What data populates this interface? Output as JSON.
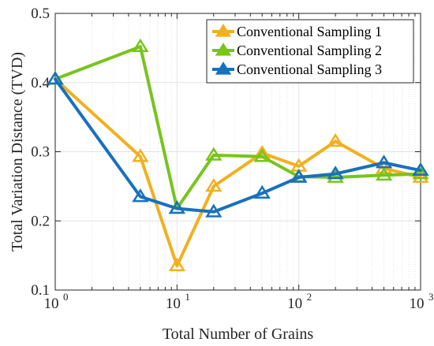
{
  "chart_data": {
    "type": "line",
    "xscale": "log",
    "xlabel": "Total Number of Grains",
    "ylabel": "Total Variation Distance (TVD)",
    "xlim": [
      1,
      1000
    ],
    "ylim": [
      0.1,
      0.5
    ],
    "grid": "minor-x-major-y",
    "legend_position": "top-right",
    "x": [
      1,
      5,
      10,
      20,
      50,
      100,
      200,
      500,
      1000
    ],
    "x_tick_labels": [
      {
        "base": "10",
        "exp": "0",
        "value": 1
      },
      {
        "base": "10",
        "exp": "1",
        "value": 10
      },
      {
        "base": "10",
        "exp": "2",
        "value": 100
      },
      {
        "base": "10",
        "exp": "3",
        "value": 1000
      }
    ],
    "y_tick_labels": [
      {
        "text": "0.1",
        "value": 0.1
      },
      {
        "text": "0.2",
        "value": 0.2
      },
      {
        "text": "0.3",
        "value": 0.3
      },
      {
        "text": "0.4",
        "value": 0.4
      },
      {
        "text": "0.5",
        "value": 0.5
      }
    ],
    "series": [
      {
        "name": "Conventional Sampling 1",
        "color": "#F2B01E",
        "values": [
          0.405,
          0.293,
          0.135,
          0.25,
          0.298,
          0.279,
          0.315,
          0.276,
          0.263
        ]
      },
      {
        "name": "Conventional Sampling 2",
        "color": "#77C41E",
        "values": [
          0.405,
          0.452,
          0.218,
          0.295,
          0.293,
          0.264,
          0.263,
          0.266,
          0.268
        ]
      },
      {
        "name": "Conventional Sampling 3",
        "color": "#1771BD",
        "values": [
          0.405,
          0.235,
          0.218,
          0.213,
          0.24,
          0.263,
          0.268,
          0.284,
          0.273
        ]
      }
    ]
  }
}
